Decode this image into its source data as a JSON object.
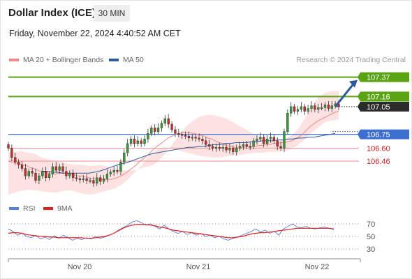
{
  "header": {
    "title": "Dollar Index (ICE)",
    "timeframe": "30 MIN",
    "datetime": "Friday, November 22, 2024 4:40:52 AM CET",
    "credit": "Research © 2024 Trading Central"
  },
  "legend": [
    {
      "label": "MA 20 + Bollinger Bands",
      "color": "#f08a8a"
    },
    {
      "label": "MA 50",
      "color": "#2e5a9c"
    }
  ],
  "rsi_legend": [
    {
      "label": "RSI",
      "color": "#5a7fd6"
    },
    {
      "label": "9MA",
      "color": "#e02020"
    }
  ],
  "colors": {
    "bull": "#3a9a3a",
    "bear": "#cc2b2b",
    "target": "#5aa312",
    "pivot": "#4a7bd4",
    "support": "#f0a0a0",
    "bollinger": "#fde2e2",
    "ma20": "#f08a8a",
    "ma50": "#2e5a9c",
    "arrow": "#2e5a9c"
  },
  "chart_data": [
    {
      "type": "candlestick",
      "title": "Dollar Index (ICE)",
      "timeframe": "30 MIN",
      "x_ticks": [
        "Nov 20",
        "Nov 21",
        "Nov 22"
      ],
      "ylim": [
        106.15,
        107.45
      ],
      "levels": [
        {
          "value": 107.37,
          "label": "107.37",
          "kind": "target"
        },
        {
          "value": 107.16,
          "label": "107.16",
          "kind": "target"
        },
        {
          "value": 107.05,
          "label": "107.05",
          "kind": "last"
        },
        {
          "value": 106.75,
          "label": "106.75",
          "kind": "pivot"
        },
        {
          "value": 106.6,
          "label": "106.60",
          "kind": "support"
        },
        {
          "value": 106.46,
          "label": "106.46",
          "kind": "support"
        }
      ],
      "close": [
        106.6,
        106.5,
        106.45,
        106.42,
        106.38,
        106.3,
        106.35,
        106.33,
        106.25,
        106.3,
        106.35,
        106.28,
        106.32,
        106.4,
        106.36,
        106.4,
        106.35,
        106.3,
        106.33,
        106.28,
        106.27,
        106.26,
        106.27,
        106.25,
        106.25,
        106.22,
        106.28,
        106.24,
        106.27,
        106.32,
        106.34,
        106.36,
        106.35,
        106.45,
        106.55,
        106.65,
        106.7,
        106.65,
        106.68,
        106.65,
        106.7,
        106.76,
        106.82,
        106.78,
        106.82,
        106.87,
        106.92,
        106.86,
        106.8,
        106.76,
        106.75,
        106.74,
        106.73,
        106.71,
        106.72,
        106.71,
        106.7,
        106.68,
        106.64,
        106.62,
        106.6,
        106.61,
        106.6,
        106.61,
        106.58,
        106.6,
        106.56,
        106.6,
        106.62,
        106.64,
        106.62,
        106.62,
        106.68,
        106.7,
        106.72,
        106.65,
        106.7,
        106.72,
        106.68,
        106.62,
        106.6,
        106.78,
        106.98,
        107.05,
        107.0,
        107.02,
        107.05,
        107.0,
        107.03,
        107.06,
        107.02,
        107.04,
        107.04,
        107.07,
        107.03,
        107.06,
        107.08,
        107.05
      ],
      "ma20": [
        106.46,
        106.45,
        106.44,
        106.43,
        106.42,
        106.41,
        106.39,
        106.38,
        106.36,
        106.35,
        106.34,
        106.33,
        106.32,
        106.32,
        106.33,
        106.33,
        106.33,
        106.32,
        106.31,
        106.3,
        106.3,
        106.29,
        106.28,
        106.27,
        106.27,
        106.26,
        106.26,
        106.26,
        106.26,
        106.27,
        106.28,
        106.3,
        106.32,
        106.35,
        106.38,
        106.41,
        106.45,
        106.48,
        106.51,
        106.55,
        106.59,
        106.62,
        106.65,
        106.68,
        106.71,
        106.73,
        106.75,
        106.76,
        106.77,
        106.77,
        106.77,
        106.76,
        106.75,
        106.74,
        106.73,
        106.71,
        106.7,
        106.68,
        106.66,
        106.65,
        106.63,
        106.62,
        106.61,
        106.61,
        106.61,
        106.61,
        106.62,
        106.62,
        106.62,
        106.63,
        106.63,
        106.64,
        106.64,
        106.65,
        106.65,
        106.66,
        106.66,
        106.67,
        106.68,
        106.7,
        106.72,
        106.75,
        106.79,
        106.83,
        106.86,
        106.89,
        106.91,
        106.93,
        106.95,
        106.97,
        106.99,
        107.0
      ],
      "ma20_x_start": 0,
      "ma50": [
        106.35,
        106.35,
        106.34,
        106.34,
        106.33,
        106.33,
        106.33,
        106.33,
        106.33,
        106.33,
        106.34,
        106.35,
        106.37,
        106.39,
        106.41,
        106.43,
        106.44,
        106.46,
        106.48,
        106.5,
        106.52,
        106.54,
        106.55,
        106.56,
        106.57,
        106.58,
        106.59,
        106.6,
        106.61,
        106.61,
        106.62,
        106.62,
        106.63,
        106.64,
        106.64,
        106.65,
        106.65,
        106.66,
        106.66,
        106.66,
        106.67,
        106.67,
        106.68,
        106.68,
        106.68,
        106.69,
        106.69,
        106.7,
        106.7,
        106.71,
        106.71,
        106.72,
        106.72,
        106.73,
        106.74,
        106.75,
        106.76
      ],
      "ma50_x_start": 41,
      "bb_upper": [
        106.56,
        106.56,
        106.57,
        106.55,
        106.54,
        106.5,
        106.48,
        106.46,
        106.45,
        106.43,
        106.42,
        106.42,
        106.41,
        106.41,
        106.42,
        106.4,
        106.38,
        106.36,
        106.36,
        106.36,
        106.38,
        106.4,
        106.42,
        106.48,
        106.56,
        106.66,
        106.76,
        106.84,
        106.9,
        106.94,
        106.96,
        106.96,
        106.94,
        106.92,
        106.88,
        106.84,
        106.8,
        106.76,
        106.72,
        106.7,
        106.68,
        106.68,
        106.7,
        106.74,
        106.82,
        106.94,
        107.06,
        107.16,
        107.2,
        107.22,
        107.22
      ],
      "bb_lower": [
        106.1,
        106.12,
        106.14,
        106.15,
        106.14,
        106.13,
        106.12,
        106.12,
        106.14,
        106.14,
        106.12,
        106.1,
        106.1,
        106.12,
        106.14,
        106.16,
        106.2,
        106.26,
        106.34,
        106.42,
        106.52,
        106.58,
        106.6,
        106.6,
        106.58,
        106.56,
        106.54,
        106.52,
        106.51,
        106.5,
        106.5,
        106.51,
        106.52,
        106.53,
        106.54,
        106.55,
        106.55,
        106.56,
        106.56,
        106.57,
        106.58,
        106.62,
        106.68,
        106.76,
        106.82,
        106.88,
        106.9,
        106.91
      ],
      "target_arrow": {
        "from": 107.05,
        "to": 107.37
      }
    },
    {
      "type": "line",
      "title": "RSI",
      "series": [
        {
          "name": "RSI",
          "values": [
            62,
            58,
            52,
            55,
            50,
            48,
            52,
            46,
            49,
            45,
            51,
            47,
            52,
            48,
            44,
            47,
            45,
            48,
            46,
            50,
            47,
            49,
            52,
            55,
            60,
            64,
            68,
            73,
            75,
            72,
            68,
            70,
            66,
            62,
            68,
            62,
            58,
            55,
            58,
            53,
            56,
            52,
            55,
            50,
            52,
            48,
            50,
            46,
            44,
            47,
            49,
            52,
            55,
            58,
            62,
            57,
            60,
            55,
            58,
            52,
            62,
            66,
            70,
            65,
            64,
            66,
            63,
            62,
            64,
            65,
            63,
            61
          ]
        },
        {
          "name": "9MA",
          "values": [
            55,
            56,
            56,
            55,
            53,
            52,
            51,
            50,
            50,
            49,
            49,
            48,
            48,
            48,
            48,
            48,
            48,
            47,
            47,
            48,
            49,
            50,
            52,
            55,
            59,
            63,
            66,
            68,
            69,
            69,
            69,
            68,
            67,
            65,
            64,
            62,
            60,
            59,
            58,
            57,
            56,
            55,
            54,
            53,
            52,
            51,
            50,
            49,
            48,
            48,
            49,
            50,
            52,
            54,
            55,
            56,
            56,
            57,
            58,
            59,
            60,
            61,
            62,
            63,
            63,
            63,
            63,
            63,
            63,
            63,
            63,
            62
          ]
        }
      ],
      "ylim": [
        20,
        80
      ],
      "y_ticks": [
        70,
        50,
        30
      ]
    }
  ]
}
